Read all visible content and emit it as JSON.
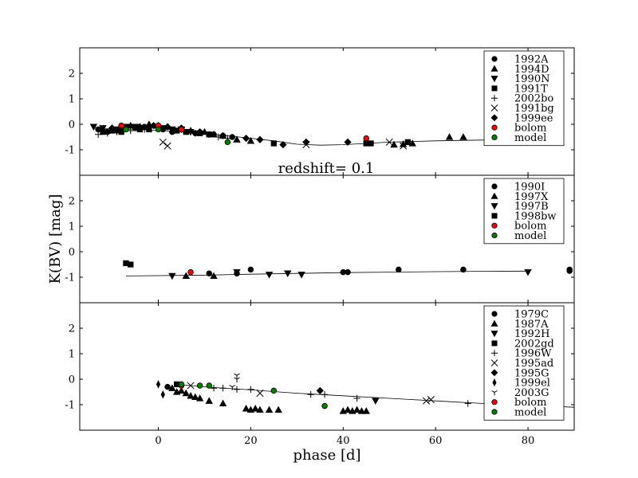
{
  "chart_data": {
    "type": "scatter",
    "xlabel": "phase [d]",
    "ylabel": "K(BV) [mag]",
    "xlim": [
      -17,
      90
    ],
    "x_ticks": [
      0,
      20,
      40,
      60,
      80
    ],
    "x_tick_labels": [
      "0",
      "20",
      "40",
      "60",
      "80"
    ],
    "ylim": [
      -2,
      3
    ],
    "y_ticks": [
      -1,
      0,
      1,
      2
    ],
    "y_tick_labels": [
      "-1",
      "0",
      "1",
      "2"
    ],
    "annotation": "redshift= 0.1",
    "panels": [
      {
        "legend": [
          {
            "label": "1992A",
            "marker": "circle",
            "color": "#000000"
          },
          {
            "label": "1994D",
            "marker": "triangle-up",
            "color": "#000000"
          },
          {
            "label": "1990N",
            "marker": "triangle-down",
            "color": "#000000"
          },
          {
            "label": "1991T",
            "marker": "square",
            "color": "#000000"
          },
          {
            "label": "2002bo",
            "marker": "plus",
            "color": "#000000"
          },
          {
            "label": "1991bg",
            "marker": "x",
            "color": "#000000"
          },
          {
            "label": "1999ee",
            "marker": "diamond",
            "color": "#000000"
          },
          {
            "label": "bolom",
            "marker": "circle",
            "color": "#ff0000"
          },
          {
            "label": "model",
            "marker": "circle",
            "color": "#008000"
          }
        ],
        "fit_line": {
          "x": [
            -14,
            -5,
            5,
            15,
            25,
            30,
            35,
            40,
            45,
            50,
            60,
            70,
            80
          ],
          "y": [
            -0.15,
            -0.2,
            -0.3,
            -0.45,
            -0.65,
            -0.78,
            -0.82,
            -0.8,
            -0.75,
            -0.7,
            -0.65,
            -0.62,
            -0.6
          ]
        },
        "series": [
          {
            "name": "1992A",
            "marker": "circle",
            "x": [
              -13,
              -11,
              -9,
              -7,
              -5,
              -3,
              1,
              3,
              8,
              12,
              14,
              16
            ],
            "y": [
              -0.2,
              -0.3,
              -0.25,
              -0.2,
              -0.15,
              -0.1,
              -0.2,
              -0.3,
              -0.35,
              -0.4,
              -0.45,
              -0.5
            ]
          },
          {
            "name": "1994D",
            "marker": "triangle-up",
            "x": [
              -8,
              -6,
              -4,
              -2,
              0,
              2,
              5,
              7,
              10,
              12,
              14,
              17,
              20,
              51,
              53,
              55,
              63,
              66
            ],
            "y": [
              -0.1,
              -0.05,
              -0.1,
              0.0,
              -0.05,
              -0.1,
              -0.2,
              -0.25,
              -0.3,
              -0.4,
              -0.45,
              -0.6,
              -0.65,
              -0.8,
              -0.78,
              -0.75,
              -0.5,
              -0.5
            ]
          },
          {
            "name": "1990N",
            "marker": "triangle-down",
            "x": [
              -14,
              -12,
              -9,
              -7,
              -5,
              1,
              3,
              5,
              7
            ],
            "y": [
              -0.1,
              -0.15,
              -0.2,
              -0.1,
              -0.1,
              -0.15,
              -0.2,
              -0.2,
              -0.3
            ]
          },
          {
            "name": "1991T",
            "marker": "square",
            "x": [
              -12,
              -10,
              -8,
              -4,
              -2,
              4,
              6,
              9,
              11,
              25,
              45,
              46,
              54
            ],
            "y": [
              -0.3,
              -0.25,
              -0.3,
              -0.2,
              -0.2,
              -0.25,
              -0.3,
              -0.35,
              -0.4,
              -0.75,
              -0.75,
              -0.75,
              -0.7
            ]
          },
          {
            "name": "2002bo",
            "marker": "plus",
            "x": [
              -13,
              -11,
              -9,
              -6,
              -3,
              8,
              11,
              13,
              15
            ],
            "y": [
              -0.4,
              -0.35,
              -0.3,
              -0.25,
              -0.2,
              -0.35,
              -0.4,
              -0.5,
              -0.55
            ]
          },
          {
            "name": "1991bg",
            "marker": "x",
            "x": [
              1,
              2,
              32,
              50,
              53
            ],
            "y": [
              -0.7,
              -0.85,
              -0.8,
              -0.7,
              -0.85
            ]
          },
          {
            "name": "1999ee",
            "marker": "diamond",
            "x": [
              -10,
              -8,
              -4,
              -1,
              2,
              5,
              9,
              14,
              19,
              22,
              27,
              32,
              41
            ],
            "y": [
              -0.15,
              -0.1,
              -0.1,
              -0.05,
              -0.1,
              -0.15,
              -0.3,
              -0.45,
              -0.55,
              -0.6,
              -0.8,
              -0.7,
              -0.7
            ]
          },
          {
            "name": "bolom",
            "marker": "circle",
            "x": [
              -8,
              0,
              5,
              45
            ],
            "y": [
              -0.05,
              -0.05,
              -0.2,
              -0.55
            ]
          },
          {
            "name": "model",
            "marker": "circle",
            "x": [
              -7,
              0,
              15
            ],
            "y": [
              -0.2,
              -0.2,
              -0.7
            ]
          }
        ]
      },
      {
        "legend": [
          {
            "label": "1990I",
            "marker": "circle",
            "color": "#000000"
          },
          {
            "label": "1997X",
            "marker": "triangle-up",
            "color": "#000000"
          },
          {
            "label": "1997B",
            "marker": "triangle-down",
            "color": "#000000"
          },
          {
            "label": "1998bw",
            "marker": "square",
            "color": "#000000"
          },
          {
            "label": "bolom",
            "marker": "circle",
            "color": "#ff0000"
          },
          {
            "label": "model",
            "marker": "circle",
            "color": "#008000"
          }
        ],
        "fit_line": {
          "x": [
            -7,
            10,
            20,
            30,
            40,
            50,
            60,
            70,
            80
          ],
          "y": [
            -0.95,
            -0.92,
            -0.88,
            -0.85,
            -0.82,
            -0.8,
            -0.78,
            -0.77,
            -0.76
          ]
        },
        "series": [
          {
            "name": "1990I",
            "marker": "circle",
            "x": [
              11,
              17,
              20,
              40,
              41,
              52,
              66,
              89,
              89
            ],
            "y": [
              -0.85,
              -0.85,
              -0.7,
              -0.8,
              -0.8,
              -0.7,
              -0.7,
              -0.75,
              -0.7
            ]
          },
          {
            "name": "1997X",
            "marker": "triangle-up",
            "x": [
              6,
              12
            ],
            "y": [
              -0.95,
              -0.95
            ]
          },
          {
            "name": "1997B",
            "marker": "triangle-down",
            "x": [
              3,
              17,
              24,
              28,
              31,
              80
            ],
            "y": [
              -0.95,
              -0.8,
              -0.9,
              -0.85,
              -0.9,
              -0.8
            ]
          },
          {
            "name": "1998bw",
            "marker": "square",
            "x": [
              -7,
              -6
            ],
            "y": [
              -0.45,
              -0.5
            ]
          },
          {
            "name": "bolom",
            "marker": "circle",
            "x": [
              7
            ],
            "y": [
              -0.8
            ]
          }
        ]
      },
      {
        "legend": [
          {
            "label": "1979C",
            "marker": "circle",
            "color": "#000000"
          },
          {
            "label": "1987A",
            "marker": "triangle-up",
            "color": "#000000"
          },
          {
            "label": "1992H",
            "marker": "triangle-down",
            "color": "#000000"
          },
          {
            "label": "2002gd",
            "marker": "square",
            "color": "#000000"
          },
          {
            "label": "1996W",
            "marker": "plus",
            "color": "#000000"
          },
          {
            "label": "1995ad",
            "marker": "x",
            "color": "#000000"
          },
          {
            "label": "1995G",
            "marker": "diamond",
            "color": "#000000"
          },
          {
            "label": "1999el",
            "marker": "thin-diamond",
            "color": "#000000"
          },
          {
            "label": "2003G",
            "marker": "tri-down",
            "color": "#000000"
          },
          {
            "label": "bolom",
            "marker": "circle",
            "color": "#ff0000"
          },
          {
            "label": "model",
            "marker": "circle",
            "color": "#008000"
          }
        ],
        "fit_line": {
          "x": [
            4,
            10,
            20,
            30,
            40,
            50,
            60,
            70,
            80,
            90
          ],
          "y": [
            -0.2,
            -0.3,
            -0.42,
            -0.55,
            -0.65,
            -0.75,
            -0.85,
            -0.95,
            -1.02,
            -1.1
          ]
        },
        "series": [
          {
            "name": "1979C",
            "marker": "circle",
            "x": [
              2
            ],
            "y": [
              -0.3
            ]
          },
          {
            "name": "1987A",
            "marker": "triangle-up",
            "x": [
              3,
              4,
              5,
              6,
              7,
              8,
              9,
              11,
              14,
              19,
              20,
              21,
              22,
              24,
              26,
              40,
              41,
              42,
              43,
              44,
              45
            ],
            "y": [
              -0.35,
              -0.5,
              -0.45,
              -0.55,
              -0.65,
              -0.7,
              -0.75,
              -0.85,
              -0.95,
              -1.15,
              -1.2,
              -1.15,
              -1.2,
              -1.2,
              -1.2,
              -1.25,
              -1.2,
              -1.25,
              -1.2,
              -1.25,
              -1.25
            ]
          },
          {
            "name": "1992H",
            "marker": "triangle-down",
            "x": [
              47
            ],
            "y": [
              -0.85
            ]
          },
          {
            "name": "2002gd",
            "marker": "square",
            "x": [
              4
            ],
            "y": [
              -0.2
            ]
          },
          {
            "name": "1996W",
            "marker": "plus",
            "x": [
              12,
              14,
              17,
              20,
              33,
              36,
              43,
              67
            ],
            "y": [
              -0.35,
              -0.35,
              -0.4,
              -0.4,
              -0.6,
              -0.6,
              -0.75,
              -0.95
            ]
          },
          {
            "name": "1995ad",
            "marker": "x",
            "x": [
              7,
              22,
              58,
              59
            ],
            "y": [
              -0.25,
              -0.55,
              -0.85,
              -0.8
            ]
          },
          {
            "name": "1995G",
            "marker": "diamond",
            "x": [
              35
            ],
            "y": [
              -0.45
            ]
          },
          {
            "name": "1999el",
            "marker": "thin-diamond",
            "x": [
              0,
              1
            ],
            "y": [
              -0.2,
              -0.6
            ]
          },
          {
            "name": "2003G",
            "marker": "tri-down",
            "x": [
              16,
              17,
              17
            ],
            "y": [
              -0.3,
              0.0,
              0.15
            ]
          },
          {
            "name": "bolom",
            "marker": "circle",
            "x": [
              5
            ],
            "y": [
              -0.25
            ]
          },
          {
            "name": "model",
            "marker": "circle",
            "x": [
              5,
              9,
              11,
              25,
              36
            ],
            "y": [
              -0.2,
              -0.25,
              -0.25,
              -0.45,
              -1.05
            ]
          }
        ]
      }
    ]
  }
}
